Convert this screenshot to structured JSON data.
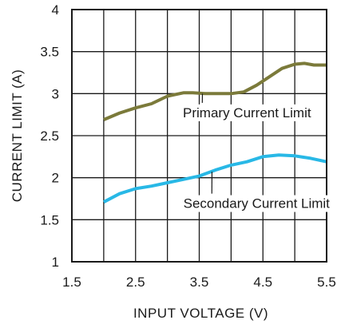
{
  "chart_data": {
    "type": "line",
    "xlabel": "INPUT VOLTAGE (V)",
    "ylabel": "CURRENT LIMIT (A)",
    "xlim": [
      1.5,
      5.5
    ],
    "ylim": [
      1,
      4
    ],
    "x_ticks": [
      "1.5",
      "2.5",
      "3.5",
      "4.5",
      "5.5"
    ],
    "x_tick_values": [
      1.5,
      2.5,
      3.5,
      4.5,
      5.5
    ],
    "y_ticks": [
      "1",
      "1.5",
      "2",
      "2.5",
      "3",
      "3.5",
      "4"
    ],
    "y_tick_values": [
      1,
      1.5,
      2,
      2.5,
      3,
      3.5,
      4
    ],
    "x_grid_values": [
      1.5,
      2.0,
      2.5,
      3.0,
      3.5,
      4.0,
      4.5,
      5.0,
      5.5
    ],
    "y_grid_values": [
      1,
      1.5,
      2,
      2.5,
      3,
      3.5,
      4
    ],
    "grid": true,
    "series": [
      {
        "name": "Primary Current Limit",
        "color": "#7b7a3a",
        "x": [
          2.0,
          2.25,
          2.5,
          2.75,
          3.0,
          3.25,
          3.4,
          3.6,
          3.8,
          4.0,
          4.2,
          4.4,
          4.6,
          4.8,
          5.0,
          5.15,
          5.3,
          5.5
        ],
        "y": [
          2.69,
          2.77,
          2.83,
          2.88,
          2.97,
          3.01,
          3.01,
          3.0,
          3.0,
          3.0,
          3.02,
          3.1,
          3.2,
          3.3,
          3.35,
          3.36,
          3.34,
          3.34
        ]
      },
      {
        "name": "Secondary Current Limit",
        "color": "#28b8e6",
        "x": [
          2.0,
          2.25,
          2.5,
          2.75,
          3.0,
          3.25,
          3.5,
          3.75,
          4.0,
          4.25,
          4.5,
          4.75,
          5.0,
          5.25,
          5.5
        ],
        "y": [
          1.71,
          1.81,
          1.87,
          1.9,
          1.94,
          1.98,
          2.02,
          2.09,
          2.15,
          2.19,
          2.25,
          2.27,
          2.26,
          2.23,
          2.19
        ]
      }
    ],
    "annotations": [
      {
        "text": "Primary Current Limit",
        "x": 4.25,
        "y": 2.72,
        "target_x": 3.55,
        "target_y": 3.0,
        "series": "Primary Current Limit"
      },
      {
        "text": "Secondary Current Limit",
        "x": 4.4,
        "y": 1.64,
        "target_x": 3.7,
        "target_y": 2.07,
        "series": "Secondary Current Limit"
      }
    ]
  }
}
